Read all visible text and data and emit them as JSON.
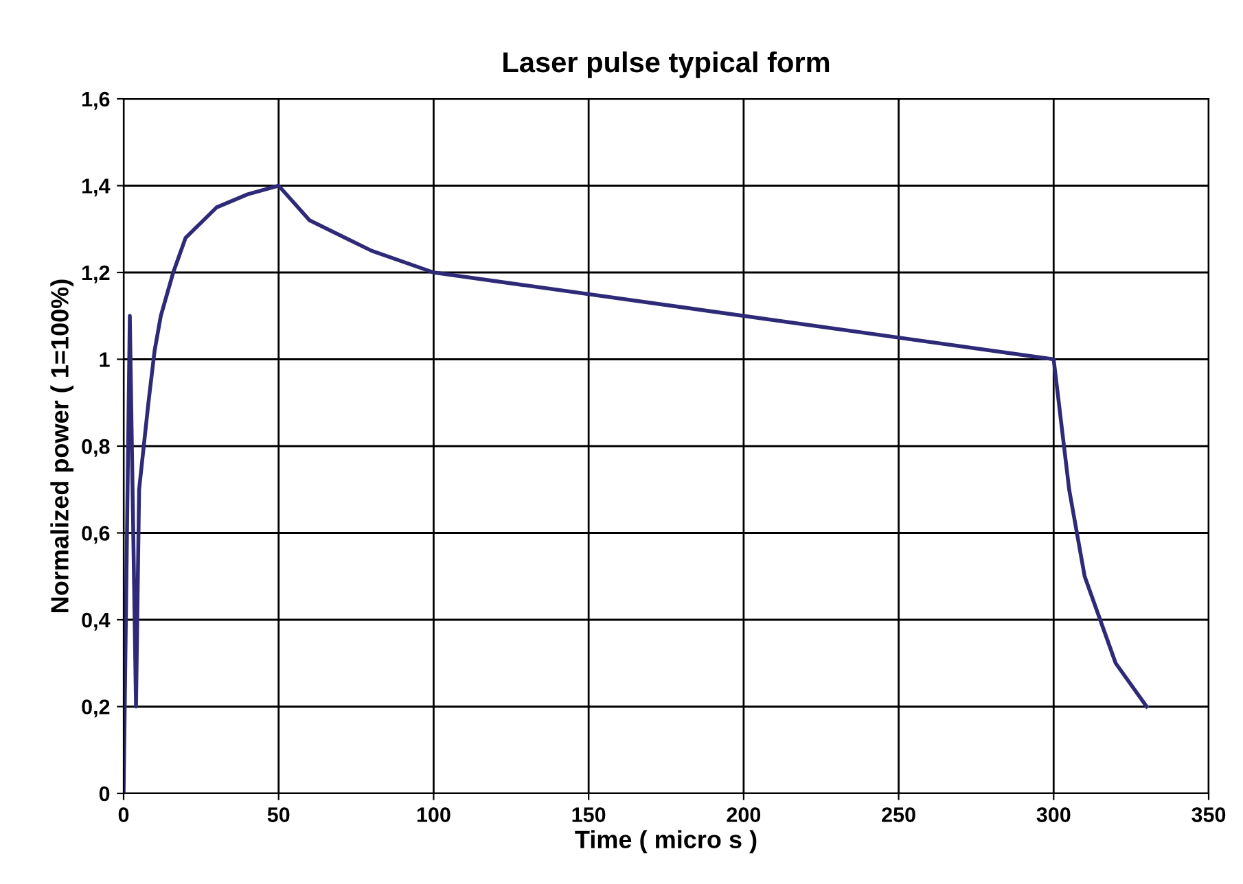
{
  "chart_data": {
    "type": "line",
    "title": "Laser pulse typical form",
    "xlabel": "Time ( micro s )",
    "ylabel": "Normalized power ( 1=100%)",
    "x": [
      0,
      2,
      4,
      5,
      8,
      10,
      12,
      14,
      16,
      18,
      20,
      30,
      40,
      50,
      60,
      80,
      100,
      300,
      305,
      310,
      320,
      330
    ],
    "series": [
      {
        "color": "#2e2a78",
        "values": [
          0,
          1.1,
          0.2,
          0.7,
          0.9,
          1.02,
          1.1,
          1.15,
          1.2,
          1.24,
          1.28,
          1.35,
          1.38,
          1.4,
          1.32,
          1.25,
          1.2,
          1.0,
          0.7,
          0.5,
          0.3,
          0.2
        ]
      }
    ],
    "xlim": [
      0,
      350
    ],
    "xticks": [
      0,
      50,
      100,
      150,
      200,
      250,
      300,
      350
    ],
    "ylim": [
      0,
      1.6
    ],
    "yticks": [
      0,
      {
        "value": 0.2,
        "label": "0,2"
      },
      {
        "value": 0.4,
        "label": "0,4"
      },
      {
        "value": 0.6,
        "label": "0,6"
      },
      {
        "value": 0.8,
        "label": "0,8"
      },
      1,
      {
        "value": 1.2,
        "label": "1,2"
      },
      {
        "value": 1.4,
        "label": "1,4"
      },
      {
        "value": 1.6,
        "label": "1,6"
      }
    ],
    "grid": true,
    "legend": false
  }
}
